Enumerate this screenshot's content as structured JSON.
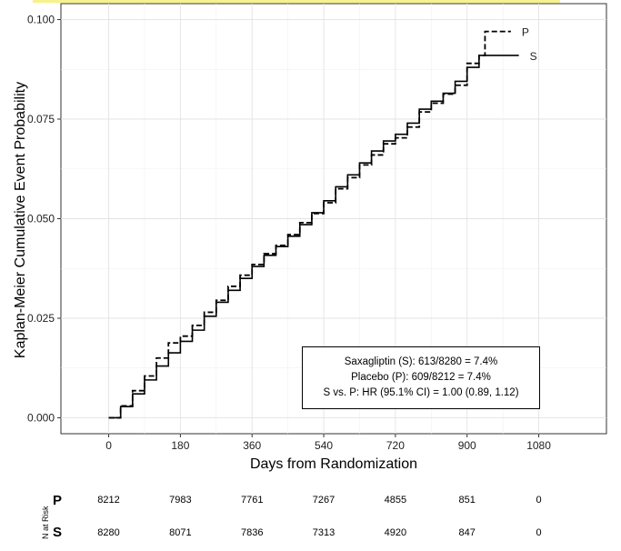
{
  "chart_data": {
    "type": "line",
    "title": "",
    "xlabel": "Days from Randomization",
    "ylabel": "Kaplan-Meier Cumulative Event Probability",
    "xlim": [
      -120,
      1250
    ],
    "ylim": [
      -0.004,
      0.104
    ],
    "x_ticks": [
      0,
      180,
      360,
      540,
      720,
      900,
      1080
    ],
    "y_ticks": [
      0.0,
      0.025,
      0.05,
      0.075,
      0.1
    ],
    "y_tick_labels": [
      "0.000",
      "0.025",
      "0.050",
      "0.075",
      "0.100"
    ],
    "grid": true,
    "series": [
      {
        "name": "P",
        "line_style": "dashed",
        "x": [
          0,
          30,
          60,
          90,
          120,
          150,
          180,
          210,
          240,
          270,
          300,
          330,
          360,
          390,
          420,
          450,
          480,
          510,
          540,
          570,
          600,
          630,
          660,
          690,
          720,
          750,
          780,
          810,
          840,
          870,
          900,
          930,
          945,
          1010
        ],
        "y": [
          0.0,
          0.003,
          0.0068,
          0.0105,
          0.015,
          0.0188,
          0.0205,
          0.0232,
          0.0265,
          0.0295,
          0.033,
          0.0358,
          0.0385,
          0.0412,
          0.0433,
          0.046,
          0.049,
          0.0513,
          0.054,
          0.0575,
          0.0603,
          0.0635,
          0.066,
          0.0688,
          0.0703,
          0.073,
          0.0768,
          0.079,
          0.0813,
          0.0835,
          0.089,
          0.091,
          0.097,
          0.097
        ]
      },
      {
        "name": "S",
        "line_style": "solid",
        "x": [
          0,
          30,
          60,
          90,
          120,
          150,
          180,
          210,
          240,
          270,
          300,
          330,
          360,
          390,
          420,
          450,
          480,
          510,
          540,
          570,
          600,
          630,
          660,
          690,
          720,
          750,
          780,
          810,
          840,
          870,
          900,
          930,
          1030
        ],
        "y": [
          0.0,
          0.0028,
          0.006,
          0.0095,
          0.013,
          0.0163,
          0.0192,
          0.022,
          0.0255,
          0.029,
          0.032,
          0.035,
          0.038,
          0.0408,
          0.043,
          0.0456,
          0.0485,
          0.0515,
          0.0545,
          0.058,
          0.061,
          0.064,
          0.067,
          0.0695,
          0.0712,
          0.074,
          0.0775,
          0.0795,
          0.0815,
          0.0845,
          0.088,
          0.091,
          0.091
        ]
      }
    ],
    "end_labels": [
      "P",
      "S"
    ],
    "legend_text": [
      "Saxagliptin (S): 613/8280 = 7.4%",
      "Placebo (P): 609/8212 = 7.4%",
      "S vs. P: HR (95.1% CI) = 1.00 (0.89, 1.12)"
    ],
    "legend_position": "bottom-right"
  },
  "risk_table": {
    "side_label_prefix": "N",
    "side_label_main": "at Risk",
    "rows": [
      {
        "arm": "P",
        "values": [
          "8212",
          "7983",
          "7761",
          "7267",
          "4855",
          "851",
          "0"
        ]
      },
      {
        "arm": "S",
        "values": [
          "8280",
          "8071",
          "7836",
          "7313",
          "4920",
          "847",
          "0"
        ]
      }
    ]
  }
}
